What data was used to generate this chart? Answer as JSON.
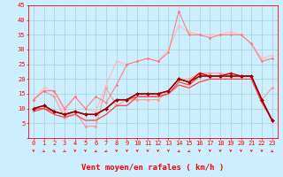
{
  "title": "",
  "xlabel": "Vent moyen/en rafales ( km/h )",
  "ylim": [
    0,
    45
  ],
  "yticks": [
    0,
    5,
    10,
    15,
    20,
    25,
    30,
    35,
    40,
    45
  ],
  "xticks": [
    0,
    1,
    2,
    3,
    4,
    5,
    6,
    7,
    8,
    9,
    10,
    11,
    12,
    13,
    14,
    15,
    16,
    17,
    18,
    19,
    20,
    21,
    22,
    23
  ],
  "background_color": "#cceeff",
  "grid_color": "#99cccc",
  "lines": [
    {
      "x": [
        0,
        1,
        2,
        3,
        4,
        5,
        6,
        7,
        8,
        9,
        10,
        11,
        12,
        13,
        14,
        15,
        16,
        17,
        18,
        19,
        20,
        21,
        22,
        23
      ],
      "y": [
        13,
        16,
        14,
        7,
        9,
        4,
        4,
        17,
        11,
        13,
        13,
        13,
        13,
        16,
        20,
        20,
        22,
        22,
        22,
        21,
        21,
        21,
        13,
        17
      ],
      "color": "#ff9999",
      "linewidth": 0.8,
      "marker": "D",
      "markersize": 1.8
    },
    {
      "x": [
        0,
        1,
        2,
        3,
        4,
        5,
        6,
        7,
        8,
        9,
        10,
        11,
        12,
        13,
        14,
        15,
        16,
        17,
        18,
        19,
        20,
        21,
        22,
        23
      ],
      "y": [
        13,
        17,
        16,
        9,
        14,
        10,
        9,
        18,
        26,
        25,
        26,
        27,
        26,
        30,
        38,
        36,
        35,
        35,
        35,
        36,
        35,
        32,
        27,
        28
      ],
      "color": "#ffbbbb",
      "linewidth": 0.8,
      "marker": "D",
      "markersize": 1.8
    },
    {
      "x": [
        0,
        1,
        2,
        3,
        4,
        5,
        6,
        7,
        8,
        9,
        10,
        11,
        12,
        13,
        14,
        15,
        16,
        17,
        18,
        19,
        20,
        21,
        22,
        23
      ],
      "y": [
        13,
        16,
        16,
        10,
        14,
        10,
        14,
        12,
        18,
        25,
        26,
        27,
        26,
        29,
        43,
        35,
        35,
        34,
        35,
        35,
        35,
        32,
        26,
        27
      ],
      "color": "#ff7777",
      "linewidth": 0.7,
      "marker": "D",
      "markersize": 1.5
    },
    {
      "x": [
        0,
        1,
        2,
        3,
        4,
        5,
        6,
        7,
        8,
        9,
        10,
        11,
        12,
        13,
        14,
        15,
        16,
        17,
        18,
        19,
        20,
        21,
        22,
        23
      ],
      "y": [
        10,
        10,
        9,
        8,
        9,
        8,
        8,
        10,
        13,
        13,
        14,
        14,
        14,
        15,
        19,
        18,
        21,
        21,
        21,
        21,
        21,
        21,
        13,
        6
      ],
      "color": "#ff4444",
      "linewidth": 0.9,
      "marker": null,
      "markersize": 0
    },
    {
      "x": [
        0,
        1,
        2,
        3,
        4,
        5,
        6,
        7,
        8,
        9,
        10,
        11,
        12,
        13,
        14,
        15,
        16,
        17,
        18,
        19,
        20,
        21,
        22,
        23
      ],
      "y": [
        9,
        10,
        8,
        7,
        8,
        6,
        6,
        8,
        11,
        11,
        14,
        14,
        14,
        15,
        18,
        17,
        19,
        20,
        20,
        20,
        20,
        20,
        12,
        6
      ],
      "color": "#ff4444",
      "linewidth": 0.9,
      "marker": null,
      "markersize": 0
    },
    {
      "x": [
        0,
        1,
        2,
        3,
        4,
        5,
        6,
        7,
        8,
        9,
        10,
        11,
        12,
        13,
        14,
        15,
        16,
        17,
        18,
        19,
        20,
        21,
        22,
        23
      ],
      "y": [
        10,
        11,
        9,
        8,
        9,
        8,
        8,
        10,
        13,
        13,
        15,
        15,
        15,
        16,
        20,
        19,
        22,
        21,
        21,
        22,
        21,
        21,
        13,
        6
      ],
      "color": "#cc0000",
      "linewidth": 1.0,
      "marker": "D",
      "markersize": 2.0
    },
    {
      "x": [
        0,
        1,
        2,
        3,
        4,
        5,
        6,
        7,
        8,
        9,
        10,
        11,
        12,
        13,
        14,
        15,
        16,
        17,
        18,
        19,
        20,
        21,
        22,
        23
      ],
      "y": [
        10,
        11,
        9,
        8,
        9,
        8,
        8,
        10,
        13,
        13,
        15,
        15,
        15,
        16,
        20,
        19,
        21,
        21,
        21,
        21,
        21,
        21,
        13,
        6
      ],
      "color": "#990000",
      "linewidth": 1.0,
      "marker": "D",
      "markersize": 2.0
    }
  ],
  "arrows": {
    "angles_deg": [
      0,
      45,
      30,
      45,
      0,
      0,
      315,
      300,
      0,
      0,
      0,
      0,
      0,
      0,
      315,
      300,
      0,
      0,
      0,
      0,
      0,
      0,
      0,
      45
    ],
    "color": "#ff0000"
  },
  "xlabel_fontsize": 6.5,
  "tick_fontsize": 5.0
}
